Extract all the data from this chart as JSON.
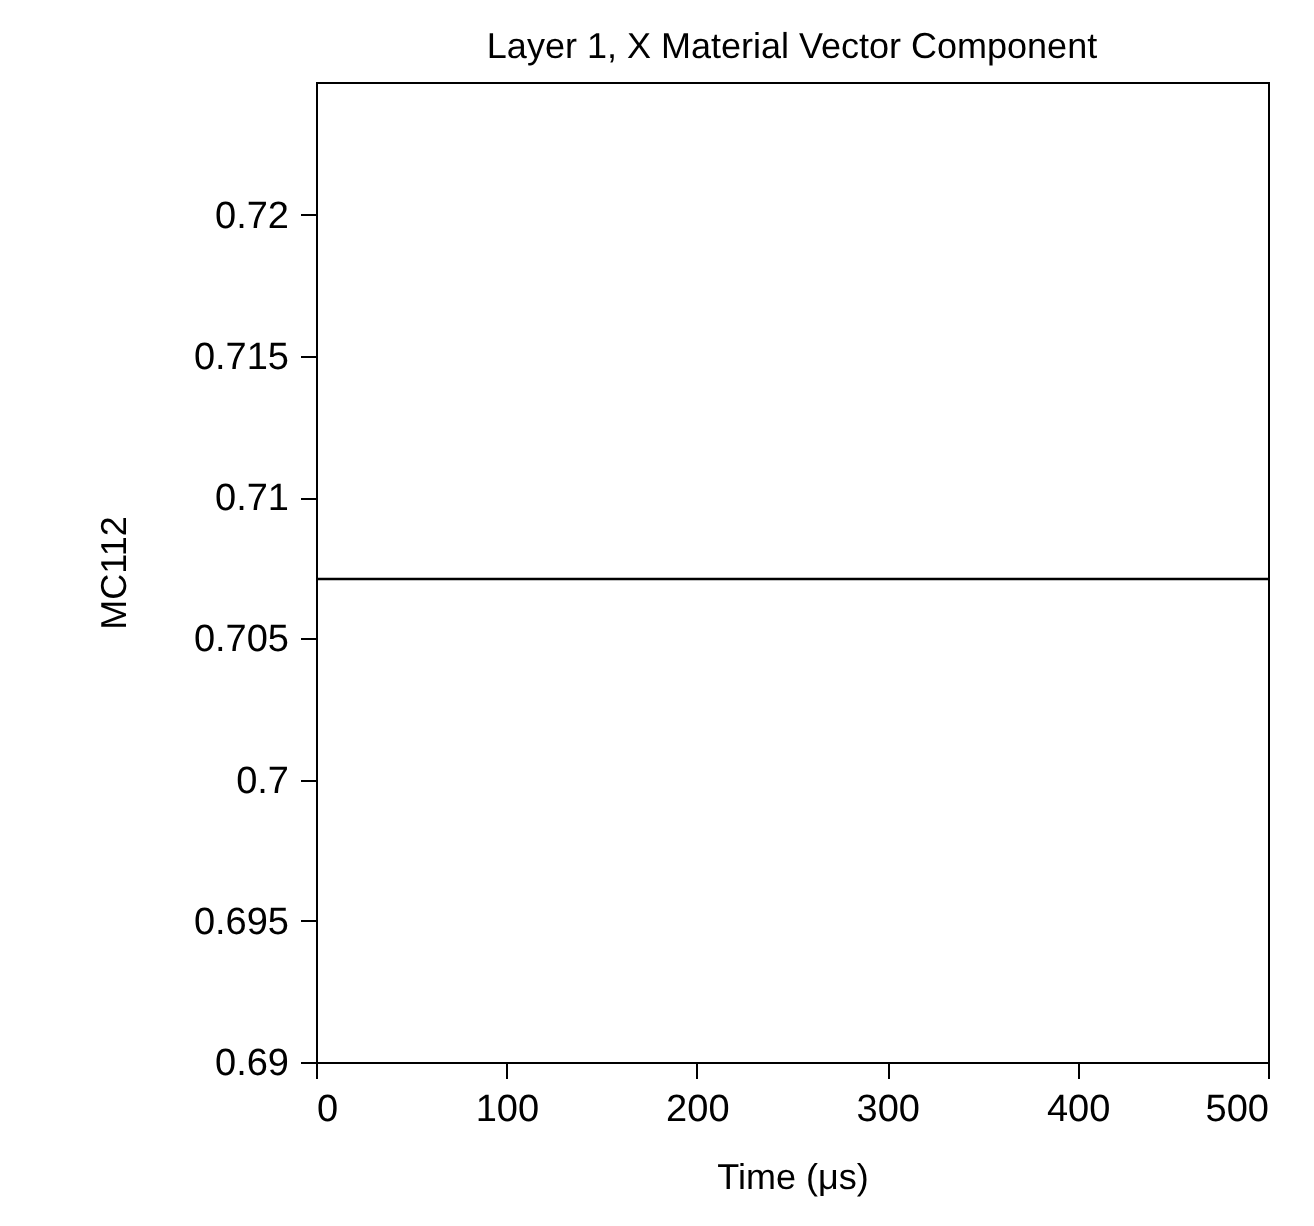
{
  "chart_data": {
    "type": "line",
    "title": "Layer 1, X Material Vector Component",
    "xlabel": "Time (μs)",
    "ylabel": "MC112",
    "x": [
      0,
      500
    ],
    "series": [
      {
        "color": "#000000",
        "values": [
          0.7071,
          0.7071
        ]
      }
    ],
    "xlim": [
      0,
      500
    ],
    "xticks": [
      0,
      100,
      200,
      300,
      400,
      500
    ],
    "ylim": [
      0.69,
      0.7247
    ],
    "yticks": [
      0.69,
      0.695,
      0.7,
      0.705,
      0.71,
      0.715,
      0.72
    ],
    "grid": false,
    "marker": "none",
    "line_style": "solid"
  }
}
